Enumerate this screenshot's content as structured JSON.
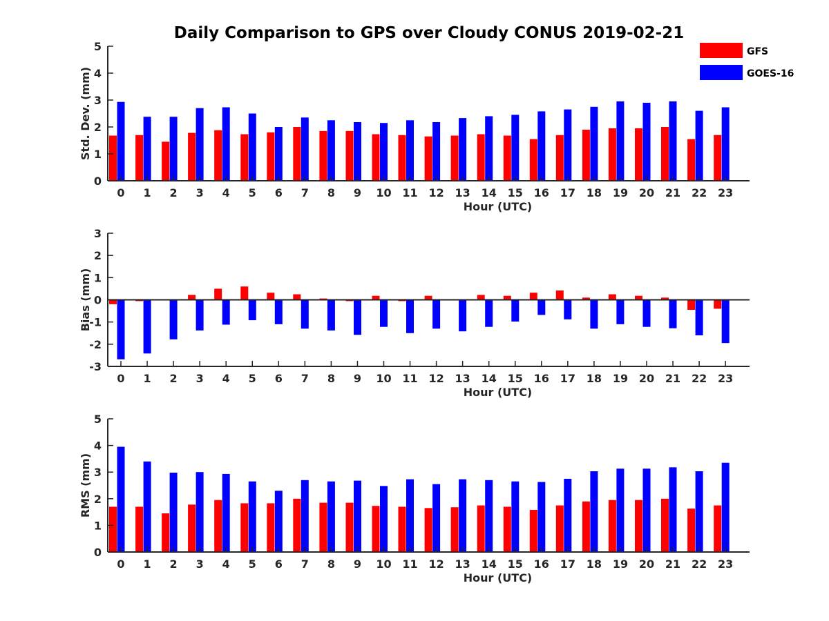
{
  "title": "Daily Comparison to GPS over Cloudy CONUS 2019-02-21",
  "legend": {
    "placement": "top-right",
    "entries": [
      {
        "name": "GFS",
        "color": "#ff0000"
      },
      {
        "name": "GOES-16",
        "color": "#0000ff"
      }
    ]
  },
  "chart_data": [
    {
      "type": "bar",
      "ylabel": "Std. Dev. (mm)",
      "xlabel": "Hour (UTC)",
      "ylim": [
        0,
        5
      ],
      "yticks": [
        0,
        1,
        2,
        3,
        4,
        5
      ],
      "categories": [
        "0",
        "1",
        "2",
        "3",
        "4",
        "5",
        "6",
        "7",
        "8",
        "9",
        "10",
        "11",
        "12",
        "13",
        "14",
        "15",
        "16",
        "17",
        "18",
        "19",
        "20",
        "21",
        "22",
        "23"
      ],
      "series": [
        {
          "name": "GFS",
          "color": "#ff0000",
          "values": [
            1.68,
            1.7,
            1.45,
            1.78,
            1.88,
            1.73,
            1.8,
            2.0,
            1.85,
            1.85,
            1.73,
            1.7,
            1.65,
            1.68,
            1.73,
            1.68,
            1.55,
            1.7,
            1.9,
            1.95,
            1.95,
            2.0,
            1.55,
            1.7
          ]
        },
        {
          "name": "GOES-16",
          "color": "#0000ff",
          "values": [
            2.93,
            2.38,
            2.38,
            2.7,
            2.73,
            2.5,
            2.0,
            2.35,
            2.25,
            2.18,
            2.15,
            2.25,
            2.18,
            2.33,
            2.4,
            2.45,
            2.58,
            2.65,
            2.75,
            2.95,
            2.9,
            2.95,
            2.6,
            2.73
          ]
        }
      ]
    },
    {
      "type": "bar",
      "ylabel": "Bias (mm)",
      "xlabel": "Hour (UTC)",
      "ylim": [
        -3,
        3
      ],
      "yticks": [
        -3,
        -2,
        -1,
        0,
        1,
        2,
        3
      ],
      "zero_line": true,
      "categories": [
        "0",
        "1",
        "2",
        "3",
        "4",
        "5",
        "6",
        "7",
        "8",
        "9",
        "10",
        "11",
        "12",
        "13",
        "14",
        "15",
        "16",
        "17",
        "18",
        "19",
        "20",
        "21",
        "22",
        "23"
      ],
      "series": [
        {
          "name": "GFS",
          "color": "#ff0000",
          "values": [
            -0.2,
            -0.06,
            0.03,
            0.22,
            0.5,
            0.6,
            0.32,
            0.25,
            0.06,
            -0.06,
            0.18,
            -0.06,
            0.18,
            0.03,
            0.22,
            0.18,
            0.32,
            0.42,
            0.1,
            0.25,
            0.18,
            0.1,
            -0.45,
            -0.4
          ]
        },
        {
          "name": "GOES-16",
          "color": "#0000ff",
          "values": [
            -2.68,
            -2.42,
            -1.78,
            -1.38,
            -1.12,
            -0.92,
            -1.1,
            -1.3,
            -1.38,
            -1.58,
            -1.22,
            -1.5,
            -1.3,
            -1.42,
            -1.22,
            -0.98,
            -0.68,
            -0.88,
            -1.3,
            -1.1,
            -1.22,
            -1.28,
            -1.6,
            -1.95
          ]
        }
      ]
    },
    {
      "type": "bar",
      "ylabel": "RMS (mm)",
      "xlabel": "Hour (UTC)",
      "ylim": [
        0,
        5
      ],
      "yticks": [
        0,
        1,
        2,
        3,
        4,
        5
      ],
      "categories": [
        "0",
        "1",
        "2",
        "3",
        "4",
        "5",
        "6",
        "7",
        "8",
        "9",
        "10",
        "11",
        "12",
        "13",
        "14",
        "15",
        "16",
        "17",
        "18",
        "19",
        "20",
        "21",
        "22",
        "23"
      ],
      "series": [
        {
          "name": "GFS",
          "color": "#ff0000",
          "values": [
            1.7,
            1.7,
            1.45,
            1.78,
            1.95,
            1.83,
            1.83,
            2.0,
            1.85,
            1.85,
            1.73,
            1.7,
            1.65,
            1.68,
            1.75,
            1.7,
            1.58,
            1.75,
            1.9,
            1.95,
            1.95,
            2.0,
            1.63,
            1.75
          ]
        },
        {
          "name": "GOES-16",
          "color": "#0000ff",
          "values": [
            3.95,
            3.4,
            2.98,
            3.0,
            2.93,
            2.65,
            2.3,
            2.7,
            2.65,
            2.68,
            2.48,
            2.73,
            2.55,
            2.73,
            2.7,
            2.65,
            2.63,
            2.75,
            3.03,
            3.13,
            3.13,
            3.18,
            3.03,
            3.35
          ]
        }
      ]
    }
  ]
}
